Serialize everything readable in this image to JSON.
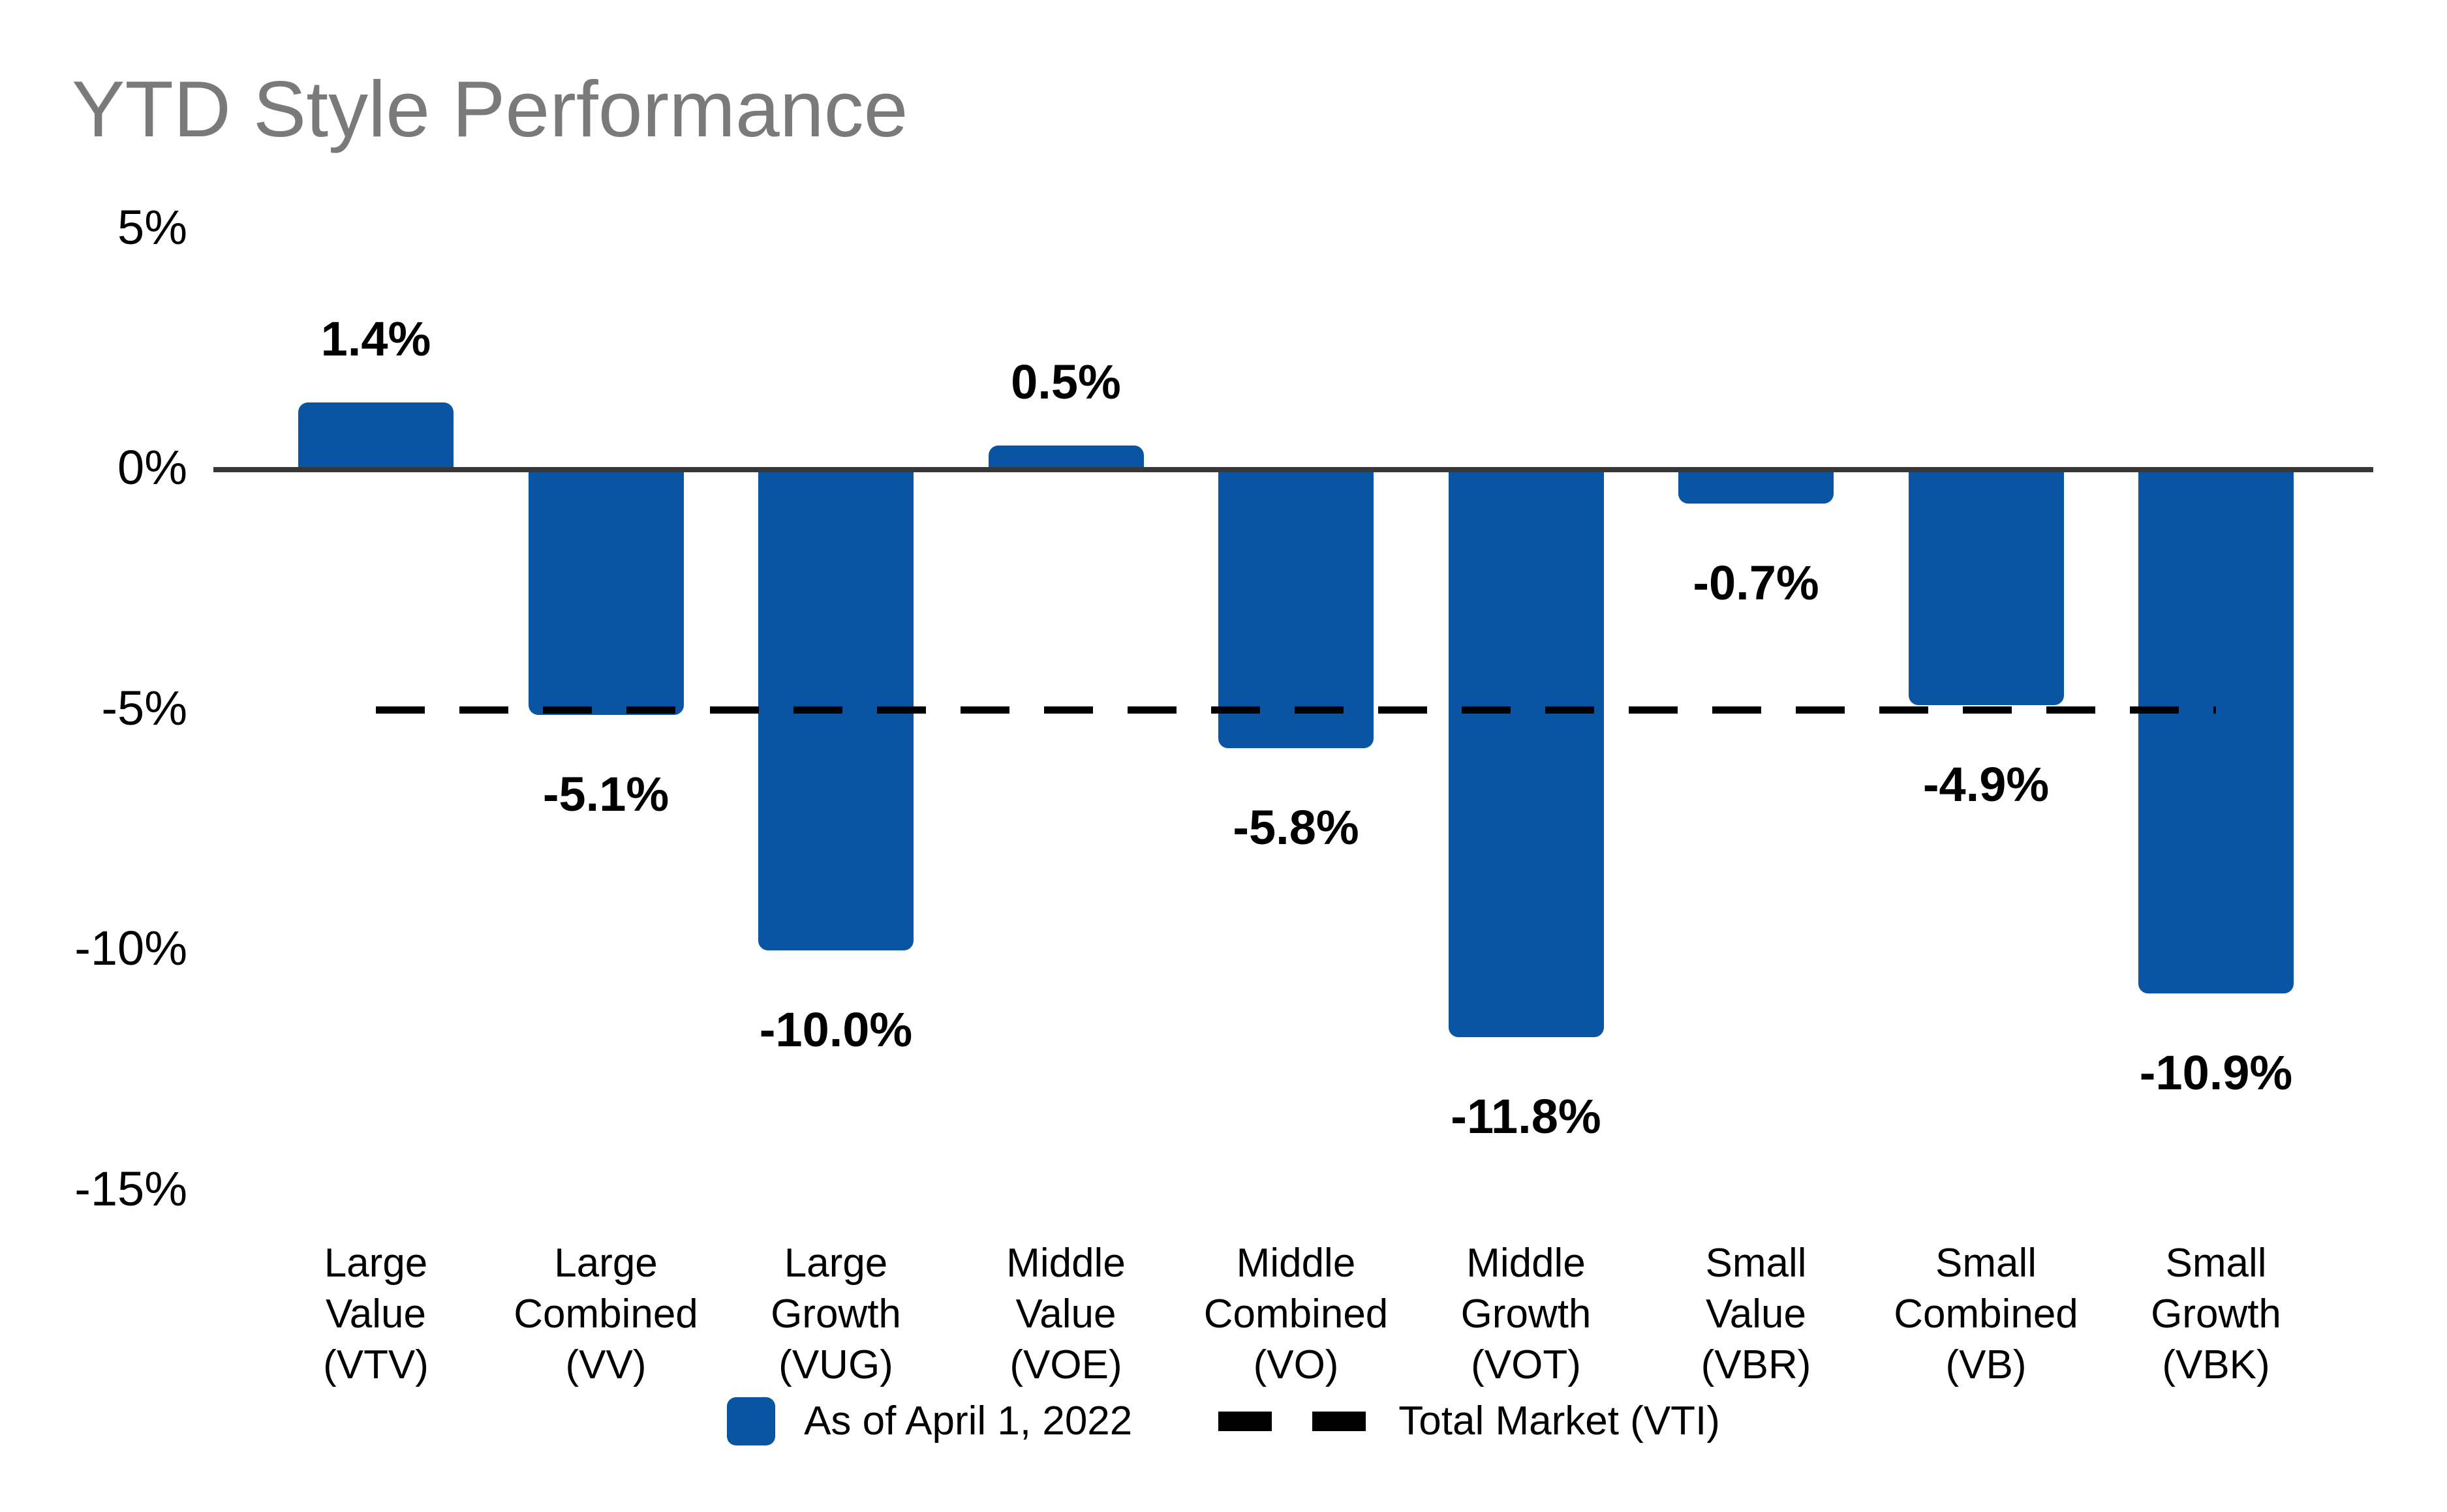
{
  "title": "YTD Style Performance",
  "legend": {
    "bar_label": "As of April 1, 2022",
    "line_label": "Total Market (VTI)"
  },
  "chart_data": {
    "type": "bar",
    "title": "YTD Style Performance",
    "categories": [
      "Large Value (VTV)",
      "Large Combined (VV)",
      "Large Growth (VUG)",
      "Middle Value (VOE)",
      "Middle Combined (VO)",
      "Middle Growth (VOT)",
      "Small Value (VBR)",
      "Small Combined (VB)",
      "Small Growth (VBK)"
    ],
    "category_lines": [
      [
        "Large",
        "Value",
        "(VTV)"
      ],
      [
        "Large",
        "Combined",
        "(VV)"
      ],
      [
        "Large",
        "Growth",
        "(VUG)"
      ],
      [
        "Middle",
        "Value",
        "(VOE)"
      ],
      [
        "Middle",
        "Combined",
        "(VO)"
      ],
      [
        "Middle",
        "Growth",
        "(VOT)"
      ],
      [
        "Small",
        "Value",
        "(VBR)"
      ],
      [
        "Small",
        "Combined",
        "(VB)"
      ],
      [
        "Small",
        "Growth",
        "(VBK)"
      ]
    ],
    "series_name": "As of April 1, 2022",
    "values": [
      1.4,
      -5.1,
      -10.0,
      0.5,
      -5.8,
      -11.8,
      -0.7,
      -4.9,
      -10.9
    ],
    "value_labels": [
      "1.4%",
      "-5.1%",
      "-10.0%",
      "0.5%",
      "-5.8%",
      "-11.8%",
      "-0.7%",
      "-4.9%",
      "-10.9%"
    ],
    "reference_line": {
      "name": "Total Market (VTI)",
      "value": -5.0,
      "style": "dashed"
    },
    "y_ticks": [
      {
        "value": 5,
        "label": "5%"
      },
      {
        "value": 0,
        "label": "0%"
      },
      {
        "value": -5,
        "label": "-5%"
      },
      {
        "value": -10,
        "label": "-10%"
      },
      {
        "value": -15,
        "label": "-15%"
      }
    ],
    "ylim": [
      -15,
      5
    ],
    "xlabel": "",
    "ylabel": "",
    "grid": false,
    "legend_position": "bottom",
    "colors": {
      "bar": "#0a54a4",
      "axis_line": "#373737",
      "reference_line": "#000000",
      "title": "#7a7a7a",
      "labels": "#000000"
    }
  }
}
